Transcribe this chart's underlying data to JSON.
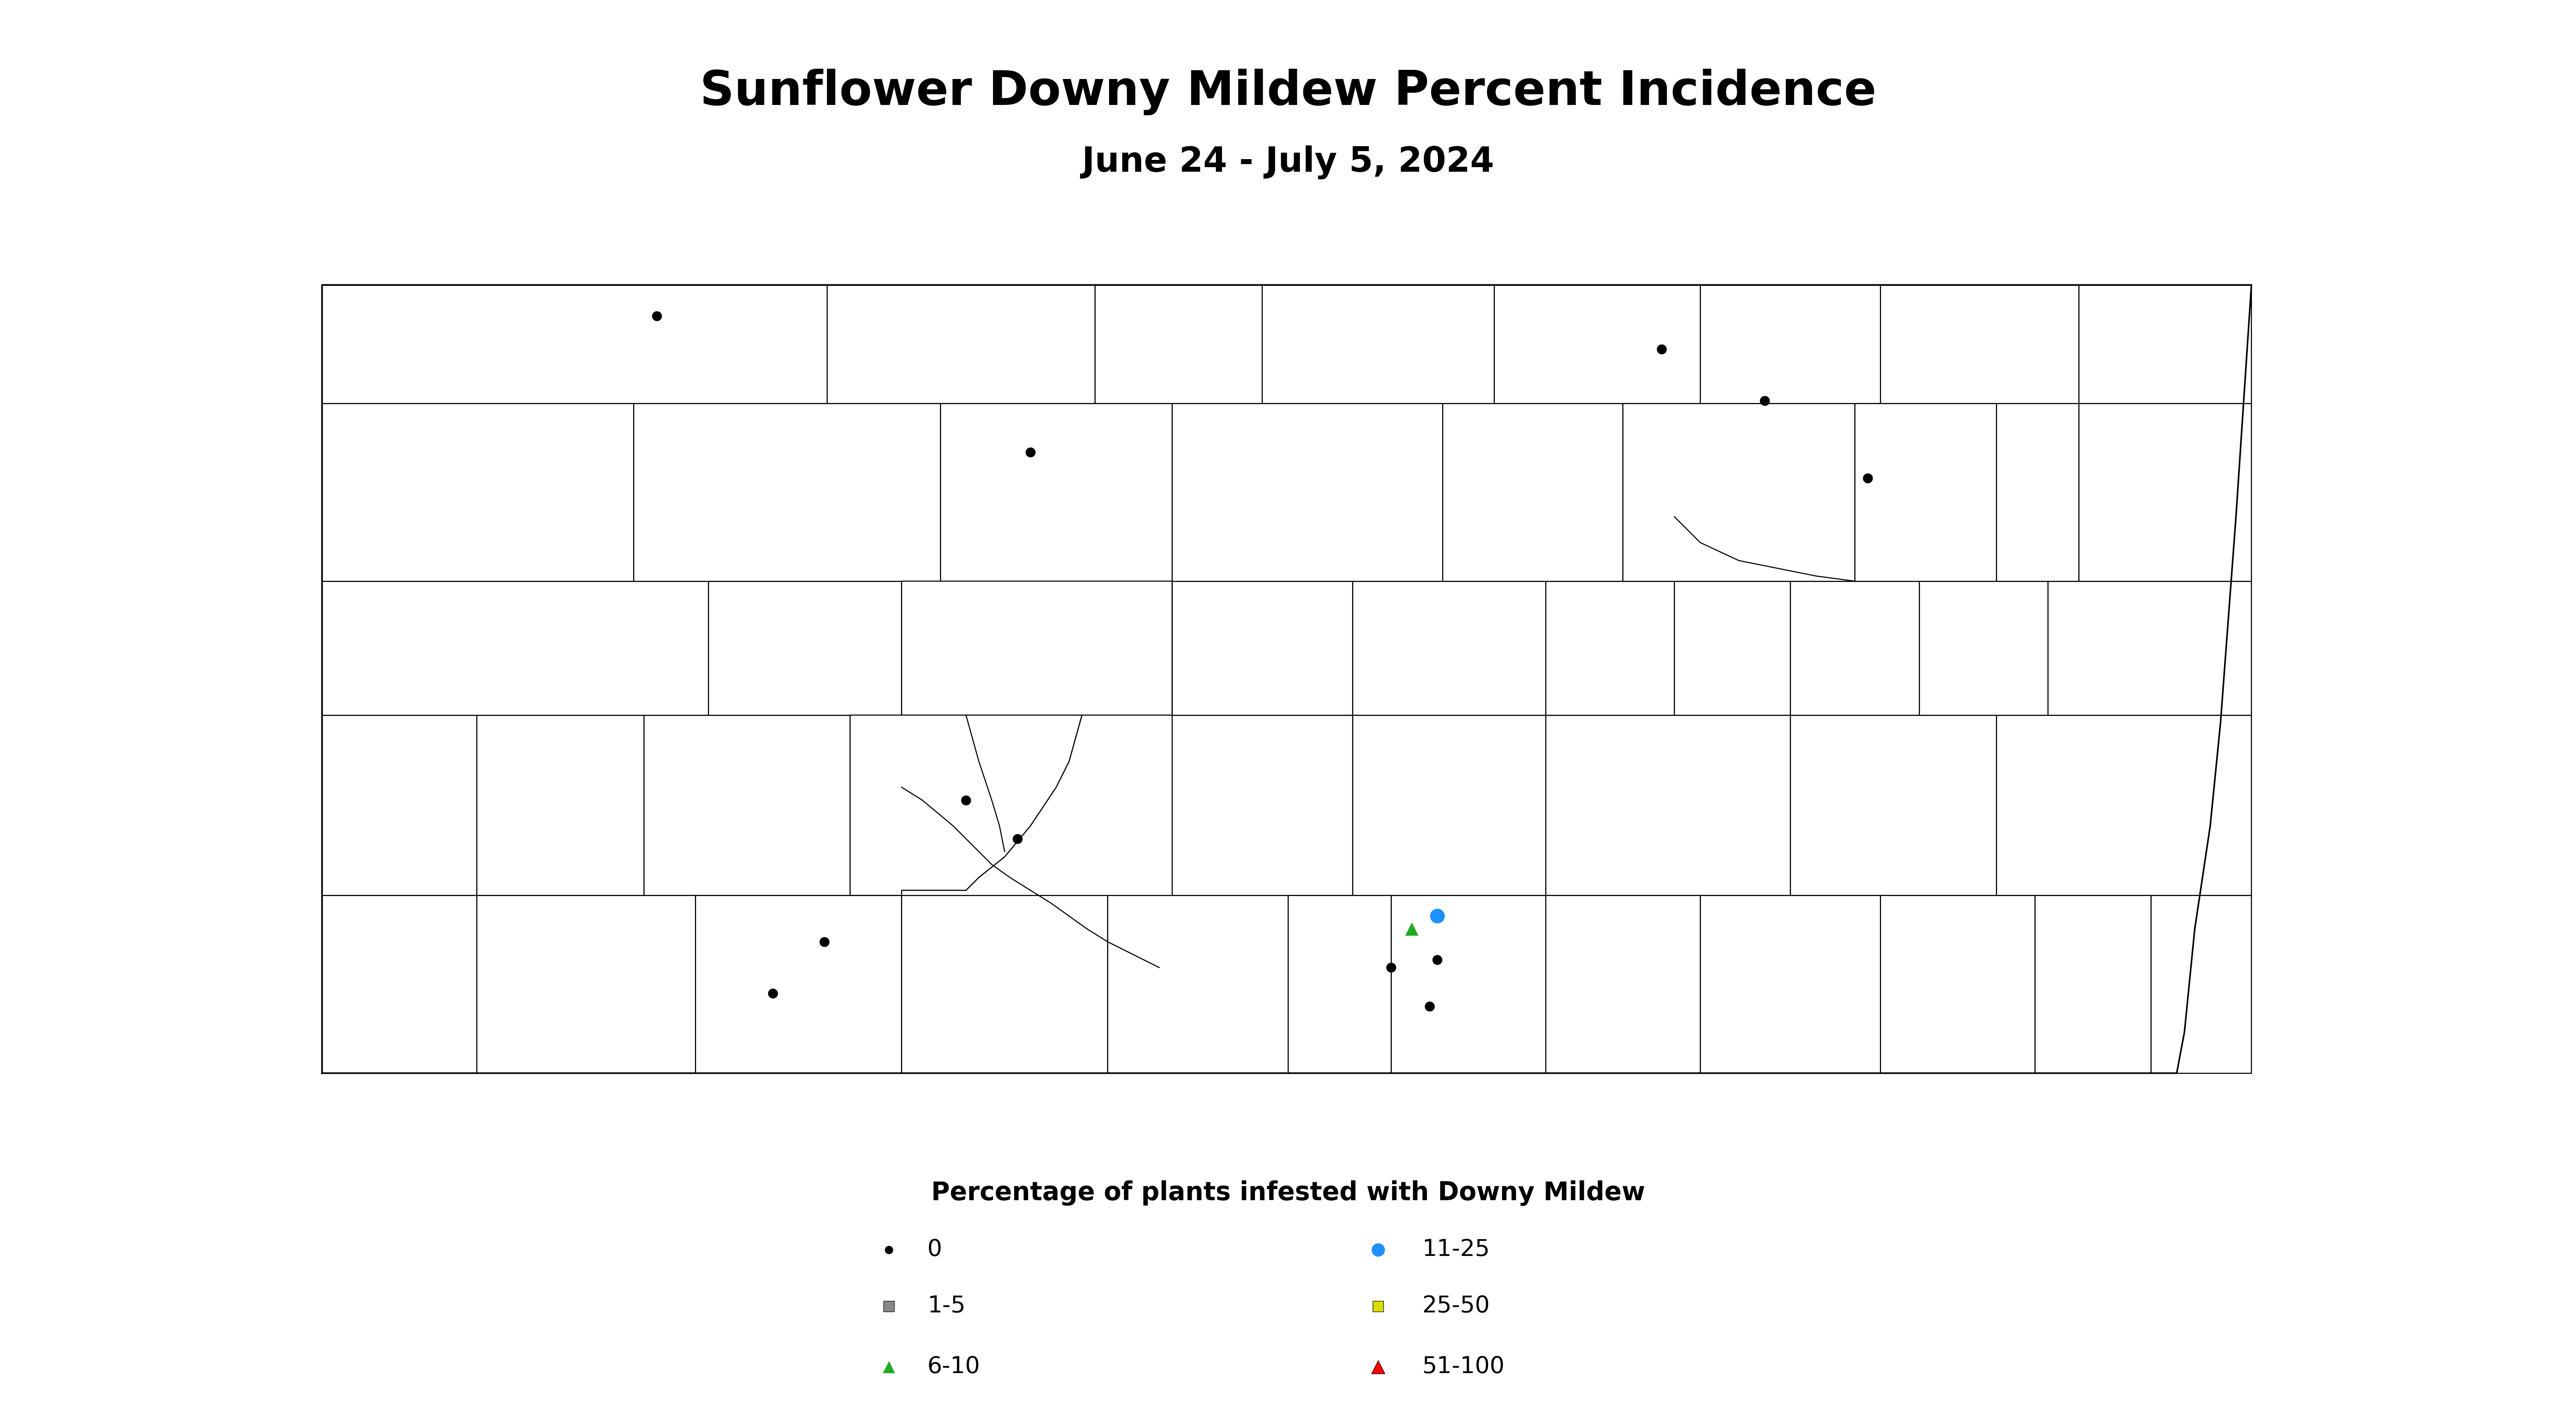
{
  "title": "Sunflower Downy Mildew Percent Incidence",
  "subtitle": "June 24 - July 5, 2024",
  "legend_title": "Percentage of plants infested with Downy Mildew",
  "background_color": "#ffffff",
  "map_facecolor": "#ffffff",
  "map_edgecolor": "#000000",
  "map_linewidth": 2.0,
  "title_fontsize": 90,
  "subtitle_fontsize": 65,
  "legend_title_fontsize": 48,
  "legend_fontsize": 44,
  "xlim": [
    -104.1,
    -96.5
  ],
  "ylim": [
    45.85,
    49.1
  ],
  "black_dot_lons": [
    -102.75,
    -101.3,
    -98.85,
    -98.45,
    -98.05,
    -101.55,
    -101.35,
    -102.1,
    -102.3,
    -99.9,
    -99.75
  ],
  "black_dot_lats": [
    48.88,
    48.35,
    48.75,
    48.55,
    48.25,
    47.0,
    46.85,
    46.45,
    46.25,
    46.35,
    46.2
  ],
  "blue_circle_lon": -99.72,
  "blue_circle_lat": 46.55,
  "green_tri_lon": -99.82,
  "green_tri_lat": 46.5,
  "black_dot2_lon": -99.72,
  "black_dot2_lat": 46.38,
  "dot_size": 350,
  "legend_marker_size": 350,
  "blue_circle_color": "#1e90ff",
  "green_tri_color": "#22aa22",
  "yellow_sq_color": "#dddd00",
  "red_tri_color": "#ff0000",
  "gray_sq_color": "#888888"
}
